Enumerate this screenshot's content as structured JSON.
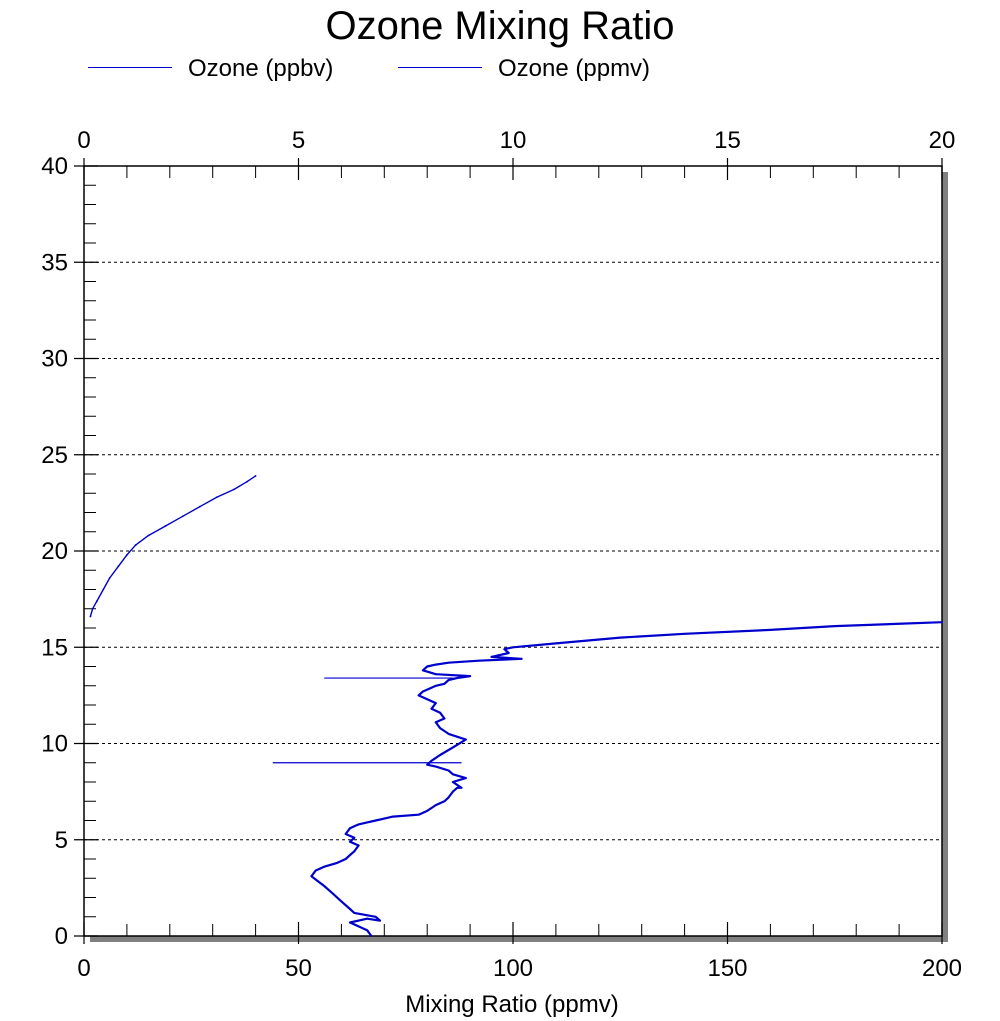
{
  "chart_data": {
    "type": "line",
    "title": "Ozone Mixing Ratio",
    "xlabel": "Mixing Ratio (ppmv)",
    "ylabel": "",
    "x_bottom": {
      "lim": [
        0,
        200
      ],
      "ticks": [
        "0",
        "50",
        "100",
        "150",
        "200"
      ]
    },
    "x_top": {
      "lim": [
        0,
        20
      ],
      "ticks": [
        "0",
        "5",
        "10",
        "15",
        "20"
      ]
    },
    "y": {
      "lim": [
        0,
        40
      ],
      "ticks": [
        "0",
        "5",
        "10",
        "15",
        "20",
        "25",
        "30",
        "35",
        "40"
      ]
    },
    "grid": "horizontal dashed",
    "legend_position": "top-left",
    "series": [
      {
        "name": "Ozone (ppbv)",
        "axis": "bottom",
        "color": "#0000cc",
        "x": [
          67,
          66,
          64,
          62,
          66,
          69,
          68,
          63,
          62,
          60,
          58,
          56,
          53,
          54,
          56,
          59,
          61,
          62,
          63,
          64,
          62,
          63,
          61,
          62,
          63,
          64,
          66,
          68,
          70,
          72,
          78,
          80,
          82,
          84,
          85,
          86,
          87,
          88,
          86,
          89,
          86,
          85,
          82,
          80,
          81,
          83,
          86,
          89,
          85,
          83,
          82,
          84,
          83,
          81,
          82,
          80,
          78,
          79,
          81,
          82,
          84,
          85,
          87,
          90,
          82,
          79,
          80,
          82,
          85,
          92,
          102,
          95,
          99,
          98,
          100,
          110,
          125,
          140,
          160,
          175,
          200
        ],
        "y": [
          0,
          0.3,
          0.5,
          0.7,
          0.9,
          0.8,
          1.0,
          1.2,
          1.4,
          1.8,
          2.2,
          2.6,
          3.1,
          3.4,
          3.6,
          3.8,
          4.0,
          4.2,
          4.4,
          4.7,
          4.9,
          5.1,
          5.3,
          5.6,
          5.7,
          5.8,
          5.9,
          6.0,
          6.1,
          6.2,
          6.3,
          6.5,
          6.8,
          7.0,
          7.2,
          7.5,
          7.7,
          7.7,
          8.0,
          8.2,
          8.4,
          8.6,
          8.8,
          8.9,
          9.1,
          9.4,
          9.8,
          10.2,
          10.5,
          10.8,
          11.1,
          11.3,
          11.6,
          11.8,
          12.1,
          12.3,
          12.5,
          12.7,
          12.9,
          13.0,
          13.1,
          13.3,
          13.4,
          13.5,
          13.6,
          13.8,
          14.0,
          14.1,
          14.2,
          14.3,
          14.4,
          14.5,
          14.7,
          14.9,
          15.0,
          15.2,
          15.5,
          15.7,
          15.9,
          16.1,
          16.3
        ]
      },
      {
        "name": "Ozone (ppmv)",
        "axis": "top",
        "color": "#0000cc",
        "x": [
          0.15,
          0.2,
          0.3,
          0.45,
          0.6,
          0.8,
          1.0,
          1.2,
          1.5,
          1.9,
          2.3,
          2.7,
          3.1,
          3.5,
          3.8,
          4.0
        ],
        "y": [
          16.6,
          17.0,
          17.4,
          18.0,
          18.6,
          19.2,
          19.8,
          20.3,
          20.8,
          21.3,
          21.8,
          22.3,
          22.8,
          23.2,
          23.6,
          23.9
        ]
      }
    ],
    "spikes": [
      {
        "series": "Ozone (ppbv)",
        "y": 13.4,
        "x_from": 56,
        "x_to": 86
      },
      {
        "series": "Ozone (ppbv)",
        "y": 9.0,
        "x_from": 44,
        "x_to": 88
      }
    ]
  }
}
